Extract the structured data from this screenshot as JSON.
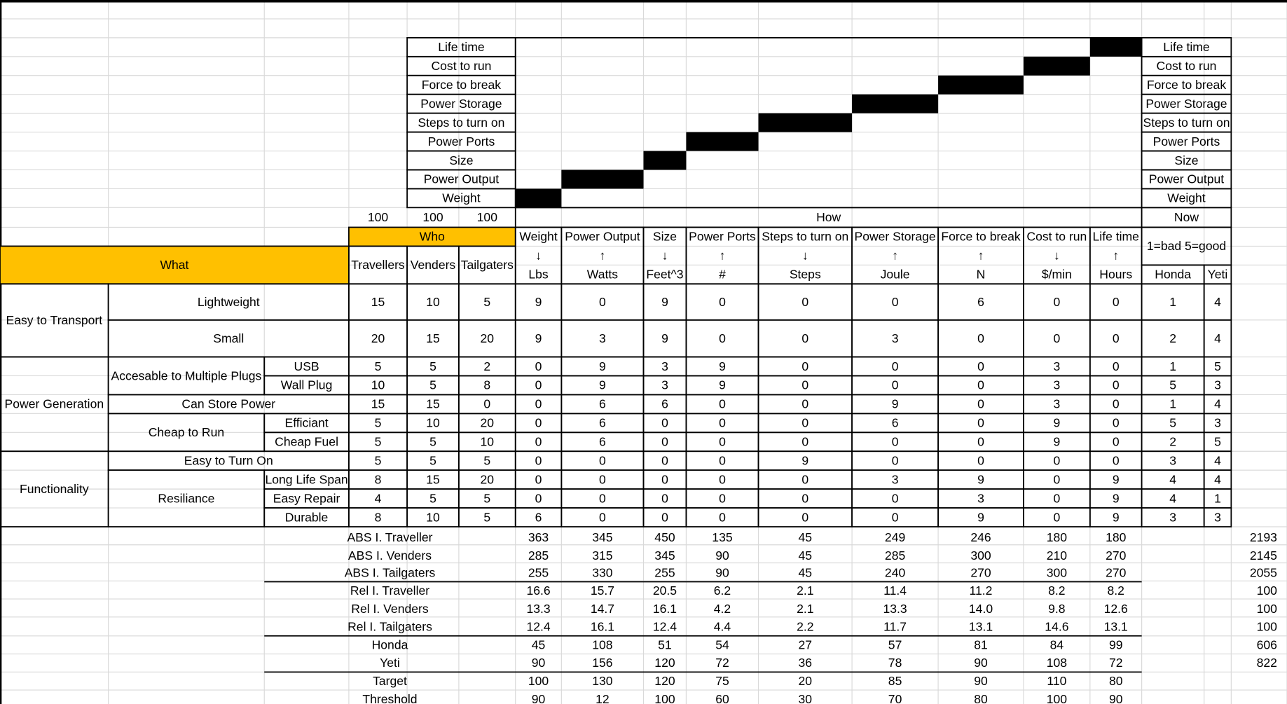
{
  "roof": {
    "labels": [
      "Life time",
      "Cost to run",
      "Force to break",
      "Power Storage",
      "Steps to turn on",
      "Power Ports",
      "Size",
      "Power Output",
      "Weight"
    ]
  },
  "importance_weights": [
    "100",
    "100",
    "100"
  ],
  "headers": {
    "how": "How",
    "now": "Now",
    "who": "Who",
    "what": "What",
    "who_columns": [
      "Travellers",
      "Venders",
      "Tailgaters"
    ],
    "scale": "1=bad 5=good",
    "competitors": [
      "Honda",
      "Yeti"
    ]
  },
  "engineering": [
    {
      "name": "Weight",
      "direction": "↓",
      "unit": "Lbs"
    },
    {
      "name": "Power Output",
      "direction": "↑",
      "unit": "Watts"
    },
    {
      "name": "Size",
      "direction": "↓",
      "unit": "Feet^3"
    },
    {
      "name": "Power Ports",
      "direction": "↑",
      "unit": "#"
    },
    {
      "name": "Steps to turn on",
      "direction": "↓",
      "unit": "Steps"
    },
    {
      "name": "Power Storage",
      "direction": "↑",
      "unit": "Joule"
    },
    {
      "name": "Force to break",
      "direction": "↑",
      "unit": "N"
    },
    {
      "name": "Cost to run",
      "direction": "↓",
      "unit": "$/min"
    },
    {
      "name": "Life time",
      "direction": "↑",
      "unit": "Hours"
    }
  ],
  "groups": [
    "Easy to Transport",
    "Power Generation",
    "Functionality"
  ],
  "subgroups": [
    "Accesable to Multiple Plugs",
    "Cheap to Run",
    "Resiliance"
  ],
  "rows": [
    {
      "label": "Lightweight",
      "who": [
        "15",
        "10",
        "5"
      ],
      "relations": [
        "9",
        "0",
        "9",
        "0",
        "0",
        "0",
        "6",
        "0",
        "0"
      ],
      "ratings": [
        "1",
        "4"
      ]
    },
    {
      "label": "Small",
      "who": [
        "20",
        "15",
        "20"
      ],
      "relations": [
        "9",
        "3",
        "9",
        "0",
        "0",
        "3",
        "0",
        "0",
        "0"
      ],
      "ratings": [
        "2",
        "4"
      ]
    },
    {
      "label": "USB",
      "who": [
        "5",
        "5",
        "2"
      ],
      "relations": [
        "0",
        "9",
        "3",
        "9",
        "0",
        "0",
        "0",
        "3",
        "0"
      ],
      "ratings": [
        "1",
        "5"
      ]
    },
    {
      "label": "Wall Plug",
      "who": [
        "10",
        "5",
        "8"
      ],
      "relations": [
        "0",
        "9",
        "3",
        "9",
        "0",
        "0",
        "0",
        "3",
        "0"
      ],
      "ratings": [
        "5",
        "3"
      ]
    },
    {
      "label": "Can Store Power",
      "who": [
        "15",
        "15",
        "0"
      ],
      "relations": [
        "0",
        "6",
        "6",
        "0",
        "0",
        "9",
        "0",
        "3",
        "0"
      ],
      "ratings": [
        "1",
        "4"
      ]
    },
    {
      "label": "Efficiant",
      "who": [
        "5",
        "10",
        "20"
      ],
      "relations": [
        "0",
        "6",
        "0",
        "0",
        "0",
        "6",
        "0",
        "9",
        "0"
      ],
      "ratings": [
        "5",
        "3"
      ]
    },
    {
      "label": "Cheap Fuel",
      "who": [
        "5",
        "5",
        "10"
      ],
      "relations": [
        "0",
        "6",
        "0",
        "0",
        "0",
        "0",
        "0",
        "9",
        "0"
      ],
      "ratings": [
        "2",
        "5"
      ]
    },
    {
      "label": "Easy to Turn On",
      "who": [
        "5",
        "5",
        "5"
      ],
      "relations": [
        "0",
        "0",
        "0",
        "0",
        "9",
        "0",
        "0",
        "0",
        "0"
      ],
      "ratings": [
        "3",
        "4"
      ]
    },
    {
      "label": "Long Life Span",
      "who": [
        "8",
        "15",
        "20"
      ],
      "relations": [
        "0",
        "0",
        "0",
        "0",
        "0",
        "3",
        "9",
        "0",
        "9"
      ],
      "ratings": [
        "4",
        "4"
      ]
    },
    {
      "label": "Easy Repair",
      "who": [
        "4",
        "5",
        "5"
      ],
      "relations": [
        "0",
        "0",
        "0",
        "0",
        "0",
        "0",
        "3",
        "0",
        "9"
      ],
      "ratings": [
        "4",
        "1"
      ]
    },
    {
      "label": "Durable",
      "who": [
        "8",
        "10",
        "5"
      ],
      "relations": [
        "6",
        "0",
        "0",
        "0",
        "0",
        "0",
        "9",
        "0",
        "9"
      ],
      "ratings": [
        "3",
        "3"
      ]
    }
  ],
  "summary": [
    {
      "label": "ABS I. Traveller",
      "values": [
        "363",
        "345",
        "450",
        "135",
        "45",
        "249",
        "246",
        "180",
        "180"
      ],
      "total": "2193"
    },
    {
      "label": "ABS I. Venders",
      "values": [
        "285",
        "315",
        "345",
        "90",
        "45",
        "285",
        "300",
        "210",
        "270"
      ],
      "total": "2145"
    },
    {
      "label": "ABS I. Tailgaters",
      "values": [
        "255",
        "330",
        "255",
        "90",
        "45",
        "240",
        "270",
        "300",
        "270"
      ],
      "total": "2055"
    },
    {
      "label": "Rel I. Traveller",
      "values": [
        "16.6",
        "15.7",
        "20.5",
        "6.2",
        "2.1",
        "11.4",
        "11.2",
        "8.2",
        "8.2"
      ],
      "total": "100"
    },
    {
      "label": "Rel I. Venders",
      "values": [
        "13.3",
        "14.7",
        "16.1",
        "4.2",
        "2.1",
        "13.3",
        "14.0",
        "9.8",
        "12.6"
      ],
      "total": "100"
    },
    {
      "label": "Rel I. Tailgaters",
      "values": [
        "12.4",
        "16.1",
        "12.4",
        "4.4",
        "2.2",
        "11.7",
        "13.1",
        "14.6",
        "13.1"
      ],
      "total": "100"
    },
    {
      "label": "Honda",
      "values": [
        "45",
        "108",
        "51",
        "54",
        "27",
        "57",
        "81",
        "84",
        "99"
      ],
      "total": "606"
    },
    {
      "label": "Yeti",
      "values": [
        "90",
        "156",
        "120",
        "72",
        "36",
        "78",
        "90",
        "108",
        "72"
      ],
      "total": "822"
    },
    {
      "label": "Target",
      "values": [
        "100",
        "130",
        "120",
        "75",
        "20",
        "85",
        "90",
        "110",
        "80"
      ]
    },
    {
      "label": "Threshold",
      "values": [
        "90",
        "12",
        "100",
        "60",
        "30",
        "70",
        "80",
        "100",
        "90"
      ]
    }
  ]
}
